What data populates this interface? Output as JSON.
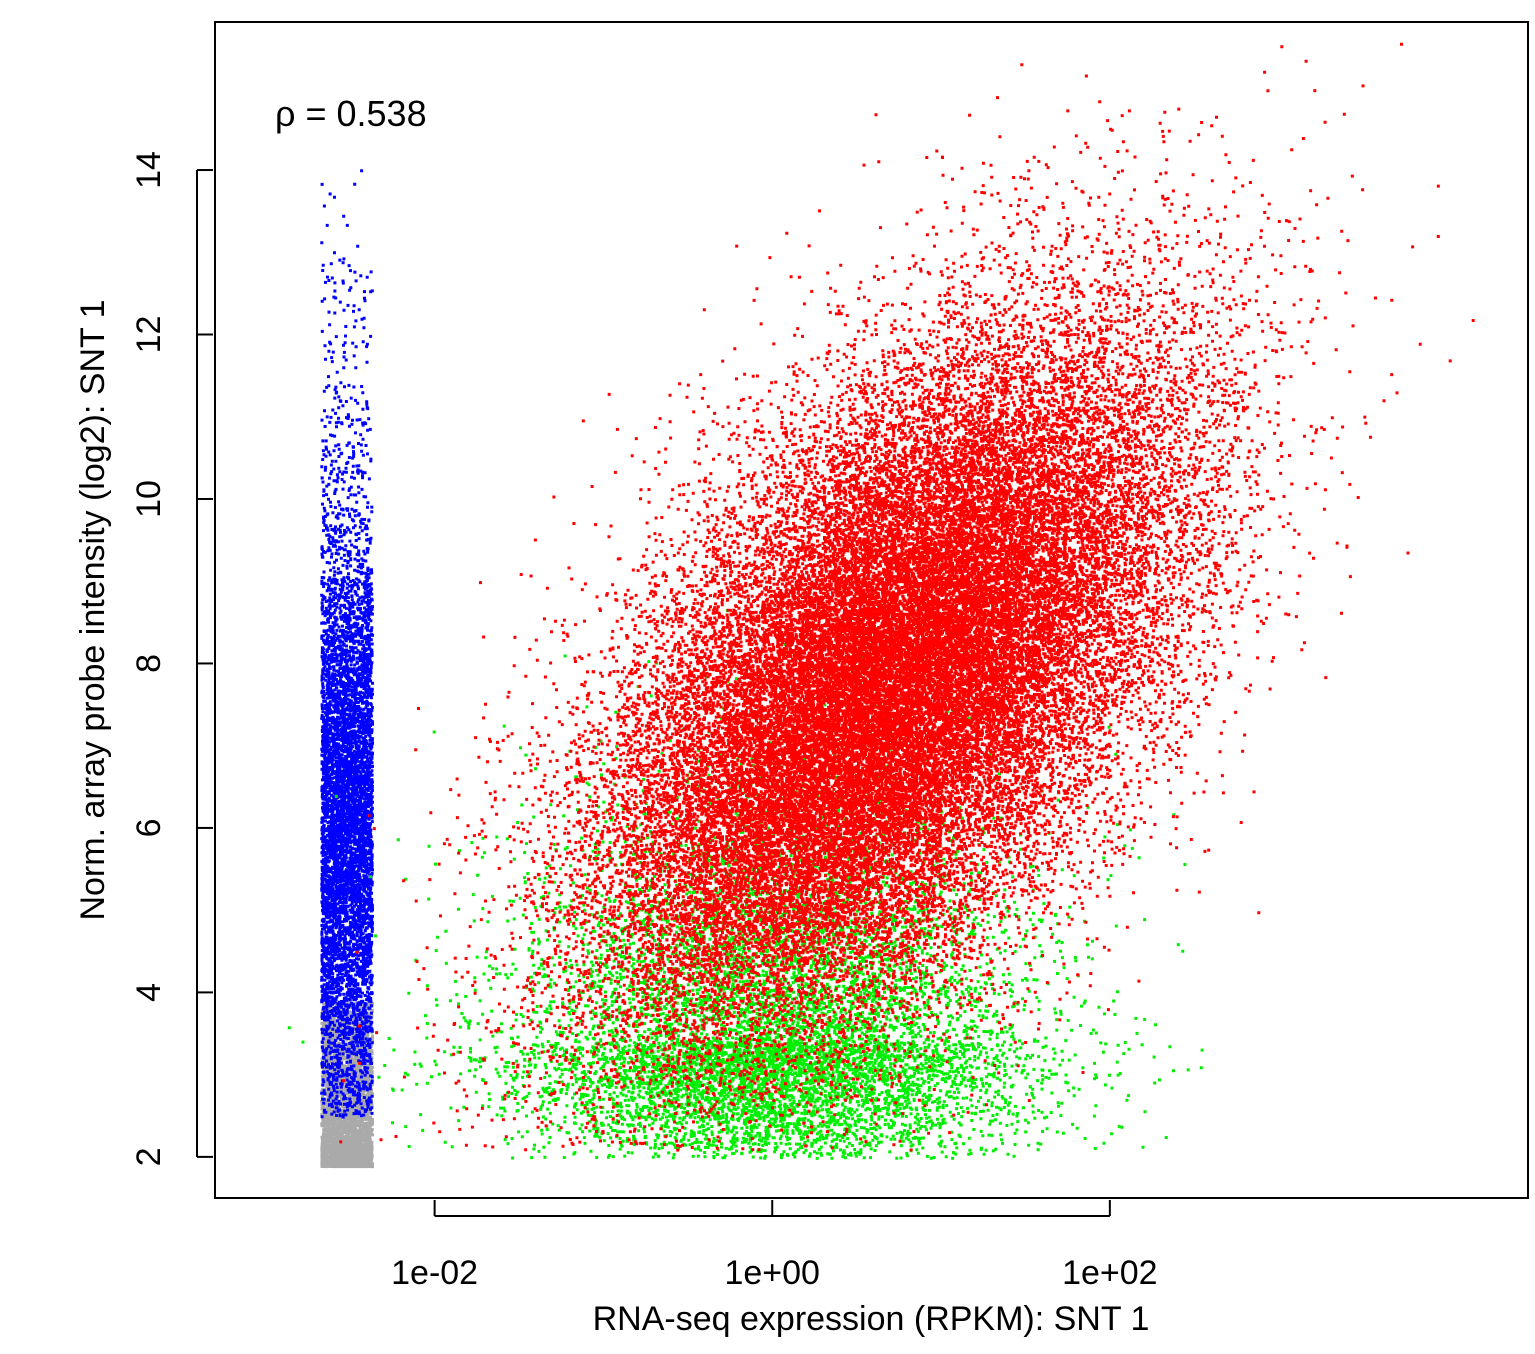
{
  "chart_data": {
    "type": "scatter",
    "title": "",
    "annotation": "ρ = 0.538",
    "xlabel": "RNA-seq expression (RPKM): SNT 1",
    "ylabel": "Norm. array probe intensity (log2): SNT 1",
    "x_scale": "log10",
    "xlim": [
      0.0005,
      30000
    ],
    "ylim": [
      1.5,
      15.8
    ],
    "x_ticks": [
      0.01,
      1,
      100
    ],
    "x_tick_labels": [
      "1e-02",
      "1e+00",
      "1e+02"
    ],
    "y_ticks": [
      2,
      4,
      6,
      8,
      10,
      12,
      14
    ],
    "y_tick_labels": [
      "2",
      "4",
      "6",
      "8",
      "10",
      "12",
      "14"
    ],
    "grid": false,
    "legend": "none",
    "colors": {
      "zero_rpkm_detected": "#0000ff",
      "zero_rpkm_undetected": "#aaaaaa",
      "expressed_detected": "#ff0000",
      "expressed_undetected": "#00ee00"
    },
    "point_groups": [
      {
        "color_key": "zero_rpkm_undetected",
        "description_x_range": [
          0.0021,
          0.0042
        ],
        "y_range": [
          1.9,
          3.9
        ],
        "approx_points": 3500
      },
      {
        "color_key": "zero_rpkm_detected",
        "description_x_range": [
          0.0021,
          0.0042
        ],
        "y_range": [
          2.5,
          14.1
        ],
        "approx_points": 6500
      },
      {
        "color_key": "expressed_undetected",
        "x_center": 1.0,
        "y_center": 3.4,
        "x_spread_log10": 0.75,
        "y_spread": 0.9,
        "approx_points": 9000
      },
      {
        "color_key": "expressed_detected",
        "x_center": 5.0,
        "y_center": 7.8,
        "x_spread_log10": 0.85,
        "y_spread": 2.1,
        "correlation": 0.55,
        "approx_points": 42000
      }
    ]
  }
}
